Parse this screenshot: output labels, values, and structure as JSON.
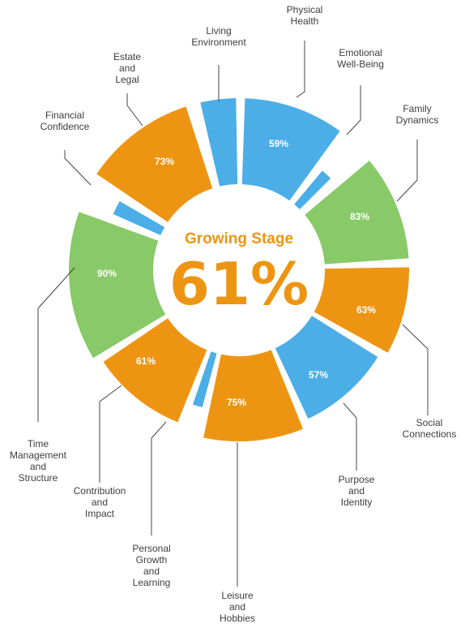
{
  "colors": {
    "orange": "#ED9512",
    "blue": "#4BAEE6",
    "green": "#87CA67",
    "center_text": "#ED9512"
  },
  "center": {
    "title": "Growing Stage",
    "value": "61%"
  },
  "chart_data": {
    "type": "donut",
    "title": "",
    "segments": [
      {
        "label": [
          "Physical",
          "Health"
        ],
        "value": "59%",
        "color": "blue"
      },
      {
        "label": [
          "Emotional",
          "Well-Being"
        ],
        "value": "",
        "color": "blue"
      },
      {
        "label": [
          "Family",
          "Dynamics"
        ],
        "value": "83%",
        "color": "green"
      },
      {
        "label": [
          "Social",
          "Connections"
        ],
        "value": "63%",
        "color": "orange"
      },
      {
        "label": [
          "Purpose",
          "and",
          "Identity"
        ],
        "value": "57%",
        "color": "blue"
      },
      {
        "label": [
          "Leisure",
          "and",
          "Hobbies"
        ],
        "value": "75%",
        "color": "orange"
      },
      {
        "label": [
          "Personal",
          "Growth",
          "and",
          "Learning"
        ],
        "value": "",
        "color": "blue"
      },
      {
        "label": [
          "Contribution",
          "and",
          "Impact"
        ],
        "value": "61%",
        "color": "orange"
      },
      {
        "label": [
          "Time",
          "Management",
          "and",
          "Structure"
        ],
        "value": "90%",
        "color": "green"
      },
      {
        "label": [
          "Financial",
          "Confidence"
        ],
        "value": "",
        "color": "blue"
      },
      {
        "label": [
          "Estate",
          "and",
          "Legal"
        ],
        "value": "73%",
        "color": "orange"
      },
      {
        "label": [
          "Living",
          "Environment"
        ],
        "value": "",
        "color": "blue"
      }
    ]
  }
}
